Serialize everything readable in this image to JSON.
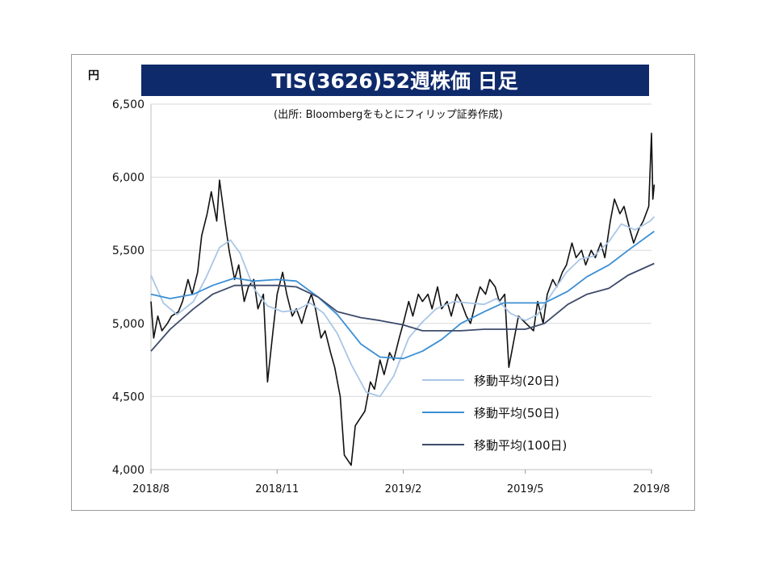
{
  "chart_data": {
    "type": "line",
    "title": "TIS(3626)52週株価 日足",
    "subtitle": "(出所: Bloombergをもとにフィリップ証券作成)",
    "ylabel": "円",
    "xlabel": "",
    "ylim": [
      4000,
      6500
    ],
    "yticks": [
      "6,500",
      "6,000",
      "5,500",
      "5,000",
      "4,500",
      "4,000"
    ],
    "ytick_values": [
      6500,
      6000,
      5500,
      5000,
      4500,
      4000
    ],
    "xticks": [
      "2018/8",
      "2018/11",
      "2019/2",
      "2019/5",
      "2019/8"
    ],
    "xtick_dates": [
      "2018-08-01",
      "2018-11-01",
      "2019-02-01",
      "2019-05-01",
      "2019-08-01"
    ],
    "grid": true,
    "legend_position": "bottom-right",
    "price_color": "#111111",
    "series": [
      {
        "name": "移動平均(20日)",
        "color": "#a9c6e6",
        "points": [
          [
            "2018-08-01",
            5330
          ],
          [
            "2018-08-10",
            5140
          ],
          [
            "2018-08-20",
            5060
          ],
          [
            "2018-09-01",
            5150
          ],
          [
            "2018-09-10",
            5310
          ],
          [
            "2018-09-20",
            5520
          ],
          [
            "2018-09-28",
            5570
          ],
          [
            "2018-10-05",
            5480
          ],
          [
            "2018-10-15",
            5240
          ],
          [
            "2018-10-25",
            5120
          ],
          [
            "2018-11-05",
            5080
          ],
          [
            "2018-11-15",
            5090
          ],
          [
            "2018-11-25",
            5140
          ],
          [
            "2018-12-05",
            5070
          ],
          [
            "2018-12-15",
            4930
          ],
          [
            "2018-12-25",
            4720
          ],
          [
            "2019-01-05",
            4530
          ],
          [
            "2019-01-15",
            4500
          ],
          [
            "2019-01-25",
            4640
          ],
          [
            "2019-02-05",
            4900
          ],
          [
            "2019-02-15",
            5010
          ],
          [
            "2019-02-25",
            5100
          ],
          [
            "2019-03-10",
            5150
          ],
          [
            "2019-03-20",
            5140
          ],
          [
            "2019-04-01",
            5130
          ],
          [
            "2019-04-10",
            5170
          ],
          [
            "2019-04-20",
            5070
          ],
          [
            "2019-05-01",
            5020
          ],
          [
            "2019-05-10",
            5060
          ],
          [
            "2019-05-20",
            5200
          ],
          [
            "2019-05-31",
            5350
          ],
          [
            "2019-06-10",
            5440
          ],
          [
            "2019-06-20",
            5460
          ],
          [
            "2019-07-01",
            5560
          ],
          [
            "2019-07-10",
            5680
          ],
          [
            "2019-07-20",
            5640
          ],
          [
            "2019-07-31",
            5700
          ],
          [
            "2019-08-03",
            5730
          ]
        ]
      },
      {
        "name": "移動平均(50日)",
        "color": "#3c8fd4",
        "points": [
          [
            "2018-08-01",
            5200
          ],
          [
            "2018-08-15",
            5170
          ],
          [
            "2018-09-01",
            5200
          ],
          [
            "2018-09-15",
            5260
          ],
          [
            "2018-10-01",
            5310
          ],
          [
            "2018-10-15",
            5290
          ],
          [
            "2018-11-01",
            5300
          ],
          [
            "2018-11-15",
            5290
          ],
          [
            "2018-12-01",
            5180
          ],
          [
            "2018-12-15",
            5060
          ],
          [
            "2019-01-01",
            4860
          ],
          [
            "2019-01-15",
            4770
          ],
          [
            "2019-02-01",
            4760
          ],
          [
            "2019-02-15",
            4810
          ],
          [
            "2019-03-01",
            4890
          ],
          [
            "2019-03-15",
            5000
          ],
          [
            "2019-04-01",
            5080
          ],
          [
            "2019-04-15",
            5140
          ],
          [
            "2019-05-01",
            5140
          ],
          [
            "2019-05-15",
            5140
          ],
          [
            "2019-06-01",
            5220
          ],
          [
            "2019-06-15",
            5320
          ],
          [
            "2019-07-01",
            5400
          ],
          [
            "2019-07-15",
            5500
          ],
          [
            "2019-08-03",
            5630
          ]
        ]
      },
      {
        "name": "移動平均(100日)",
        "color": "#3d4b6b",
        "points": [
          [
            "2018-08-01",
            4810
          ],
          [
            "2018-08-15",
            4960
          ],
          [
            "2018-09-01",
            5100
          ],
          [
            "2018-09-15",
            5200
          ],
          [
            "2018-10-01",
            5260
          ],
          [
            "2018-10-15",
            5260
          ],
          [
            "2018-11-01",
            5260
          ],
          [
            "2018-11-15",
            5250
          ],
          [
            "2018-12-01",
            5180
          ],
          [
            "2018-12-15",
            5080
          ],
          [
            "2019-01-01",
            5040
          ],
          [
            "2019-01-15",
            5020
          ],
          [
            "2019-02-01",
            4990
          ],
          [
            "2019-02-15",
            4950
          ],
          [
            "2019-03-01",
            4950
          ],
          [
            "2019-03-15",
            4950
          ],
          [
            "2019-04-01",
            4960
          ],
          [
            "2019-04-15",
            4960
          ],
          [
            "2019-05-01",
            4960
          ],
          [
            "2019-05-15",
            5000
          ],
          [
            "2019-06-01",
            5130
          ],
          [
            "2019-06-15",
            5200
          ],
          [
            "2019-07-01",
            5240
          ],
          [
            "2019-07-15",
            5330
          ],
          [
            "2019-08-03",
            5410
          ]
        ]
      }
    ],
    "price_points": [
      [
        "2018-08-01",
        5150
      ],
      [
        "2018-08-03",
        4900
      ],
      [
        "2018-08-06",
        5050
      ],
      [
        "2018-08-09",
        4950
      ],
      [
        "2018-08-13",
        5000
      ],
      [
        "2018-08-16",
        5050
      ],
      [
        "2018-08-21",
        5080
      ],
      [
        "2018-08-24",
        5150
      ],
      [
        "2018-08-28",
        5300
      ],
      [
        "2018-08-31",
        5200
      ],
      [
        "2018-09-04",
        5350
      ],
      [
        "2018-09-07",
        5600
      ],
      [
        "2018-09-11",
        5750
      ],
      [
        "2018-09-14",
        5900
      ],
      [
        "2018-09-18",
        5700
      ],
      [
        "2018-09-20",
        5980
      ],
      [
        "2018-09-24",
        5700
      ],
      [
        "2018-09-27",
        5500
      ],
      [
        "2018-10-01",
        5300
      ],
      [
        "2018-10-04",
        5400
      ],
      [
        "2018-10-08",
        5150
      ],
      [
        "2018-10-11",
        5250
      ],
      [
        "2018-10-15",
        5300
      ],
      [
        "2018-10-18",
        5100
      ],
      [
        "2018-10-22",
        5200
      ],
      [
        "2018-10-25",
        4600
      ],
      [
        "2018-10-29",
        4950
      ],
      [
        "2018-11-01",
        5200
      ],
      [
        "2018-11-05",
        5350
      ],
      [
        "2018-11-08",
        5200
      ],
      [
        "2018-11-12",
        5050
      ],
      [
        "2018-11-15",
        5100
      ],
      [
        "2018-11-19",
        5000
      ],
      [
        "2018-11-22",
        5100
      ],
      [
        "2018-11-26",
        5200
      ],
      [
        "2018-11-29",
        5100
      ],
      [
        "2018-12-03",
        4900
      ],
      [
        "2018-12-06",
        4950
      ],
      [
        "2018-12-10",
        4800
      ],
      [
        "2018-12-13",
        4700
      ],
      [
        "2018-12-17",
        4500
      ],
      [
        "2018-12-20",
        4100
      ],
      [
        "2018-12-25",
        4030
      ],
      [
        "2018-12-28",
        4300
      ],
      [
        "2019-01-04",
        4400
      ],
      [
        "2019-01-08",
        4600
      ],
      [
        "2019-01-11",
        4550
      ],
      [
        "2019-01-15",
        4750
      ],
      [
        "2019-01-18",
        4650
      ],
      [
        "2019-01-22",
        4800
      ],
      [
        "2019-01-25",
        4750
      ],
      [
        "2019-01-29",
        4900
      ],
      [
        "2019-02-01",
        5000
      ],
      [
        "2019-02-05",
        5150
      ],
      [
        "2019-02-08",
        5050
      ],
      [
        "2019-02-12",
        5200
      ],
      [
        "2019-02-15",
        5150
      ],
      [
        "2019-02-19",
        5200
      ],
      [
        "2019-02-22",
        5100
      ],
      [
        "2019-02-26",
        5250
      ],
      [
        "2019-03-01",
        5100
      ],
      [
        "2019-03-05",
        5150
      ],
      [
        "2019-03-08",
        5050
      ],
      [
        "2019-03-12",
        5200
      ],
      [
        "2019-03-15",
        5150
      ],
      [
        "2019-03-19",
        5050
      ],
      [
        "2019-03-22",
        5000
      ],
      [
        "2019-03-26",
        5150
      ],
      [
        "2019-03-29",
        5250
      ],
      [
        "2019-04-02",
        5200
      ],
      [
        "2019-04-05",
        5300
      ],
      [
        "2019-04-09",
        5250
      ],
      [
        "2019-04-12",
        5150
      ],
      [
        "2019-04-16",
        5200
      ],
      [
        "2019-04-19",
        4700
      ],
      [
        "2019-04-23",
        4900
      ],
      [
        "2019-04-26",
        5050
      ],
      [
        "2019-05-07",
        4950
      ],
      [
        "2019-05-10",
        5150
      ],
      [
        "2019-05-14",
        5000
      ],
      [
        "2019-05-17",
        5200
      ],
      [
        "2019-05-21",
        5300
      ],
      [
        "2019-05-24",
        5250
      ],
      [
        "2019-05-28",
        5350
      ],
      [
        "2019-05-31",
        5400
      ],
      [
        "2019-06-04",
        5550
      ],
      [
        "2019-06-07",
        5450
      ],
      [
        "2019-06-11",
        5500
      ],
      [
        "2019-06-14",
        5400
      ],
      [
        "2019-06-18",
        5500
      ],
      [
        "2019-06-21",
        5450
      ],
      [
        "2019-06-25",
        5550
      ],
      [
        "2019-06-28",
        5450
      ],
      [
        "2019-07-02",
        5700
      ],
      [
        "2019-07-05",
        5850
      ],
      [
        "2019-07-09",
        5750
      ],
      [
        "2019-07-12",
        5800
      ],
      [
        "2019-07-16",
        5650
      ],
      [
        "2019-07-19",
        5550
      ],
      [
        "2019-07-23",
        5650
      ],
      [
        "2019-07-26",
        5700
      ],
      [
        "2019-07-30",
        5800
      ],
      [
        "2019-08-01",
        6300
      ],
      [
        "2019-08-02",
        5850
      ],
      [
        "2019-08-03",
        5950
      ]
    ]
  }
}
